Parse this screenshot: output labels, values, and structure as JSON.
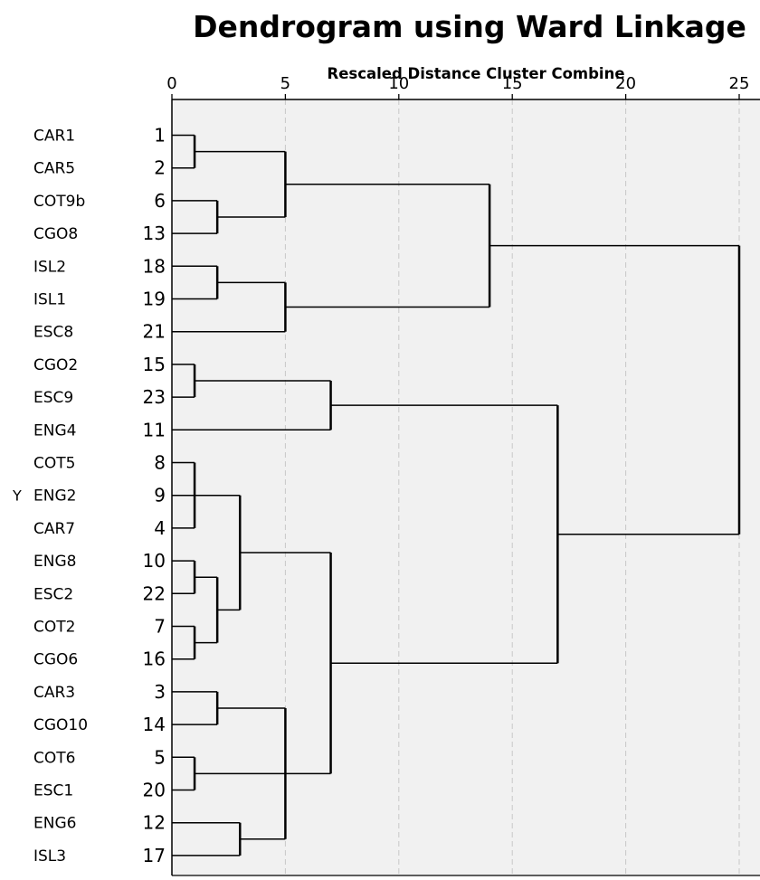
{
  "chart_data": {
    "type": "dendrogram",
    "title": "Dendrogram using Ward Linkage",
    "xlabel": "Rescaled Distance Cluster Combine",
    "ylabel": "Y",
    "xlim": [
      0,
      25
    ],
    "xticks": [
      0,
      5,
      10,
      15,
      20,
      25
    ],
    "grid": true,
    "leaves": [
      {
        "label": "CAR1",
        "case": "1"
      },
      {
        "label": "CAR5",
        "case": "2"
      },
      {
        "label": "COT9b",
        "case": "6"
      },
      {
        "label": "CGO8",
        "case": "13"
      },
      {
        "label": "ISL2",
        "case": "18"
      },
      {
        "label": "ISL1",
        "case": "19"
      },
      {
        "label": "ESC8",
        "case": "21"
      },
      {
        "label": "CGO2",
        "case": "15"
      },
      {
        "label": "ESC9",
        "case": "23"
      },
      {
        "label": "ENG4",
        "case": "11"
      },
      {
        "label": "COT5",
        "case": "8"
      },
      {
        "label": "ENG2",
        "case": "9"
      },
      {
        "label": "CAR7",
        "case": "4"
      },
      {
        "label": "ENG8",
        "case": "10"
      },
      {
        "label": "ESC2",
        "case": "22"
      },
      {
        "label": "COT2",
        "case": "7"
      },
      {
        "label": "CGO6",
        "case": "16"
      },
      {
        "label": "CAR3",
        "case": "3"
      },
      {
        "label": "CGO10",
        "case": "14"
      },
      {
        "label": "COT6",
        "case": "5"
      },
      {
        "label": "ESC1",
        "case": "20"
      },
      {
        "label": "ENG6",
        "case": "12"
      },
      {
        "label": "ISL3",
        "case": "17"
      }
    ],
    "merges": [
      {
        "id": "m1",
        "children": [
          "L0",
          "L1"
        ],
        "height": 1
      },
      {
        "id": "m2",
        "children": [
          "L2",
          "L3"
        ],
        "height": 2
      },
      {
        "id": "m3",
        "children": [
          "m1",
          "m2"
        ],
        "height": 5
      },
      {
        "id": "m4",
        "children": [
          "L4",
          "L5"
        ],
        "height": 2
      },
      {
        "id": "m5",
        "children": [
          "m4",
          "L6"
        ],
        "height": 5
      },
      {
        "id": "m6",
        "children": [
          "m3",
          "m5"
        ],
        "height": 14
      },
      {
        "id": "m7",
        "children": [
          "L7",
          "L8"
        ],
        "height": 1
      },
      {
        "id": "m8",
        "children": [
          "m7",
          "L9"
        ],
        "height": 7
      },
      {
        "id": "m9",
        "children": [
          "L10",
          "L11",
          "L12"
        ],
        "height": 1
      },
      {
        "id": "m10",
        "children": [
          "L13",
          "L14"
        ],
        "height": 1
      },
      {
        "id": "m11",
        "children": [
          "L15",
          "L16"
        ],
        "height": 1
      },
      {
        "id": "m12",
        "children": [
          "m10",
          "m11"
        ],
        "height": 2
      },
      {
        "id": "m13",
        "children": [
          "m9",
          "m12"
        ],
        "height": 3
      },
      {
        "id": "m14",
        "children": [
          "L17",
          "L18"
        ],
        "height": 2
      },
      {
        "id": "m15",
        "children": [
          "L19",
          "L20"
        ],
        "height": 1
      },
      {
        "id": "m16",
        "children": [
          "L21",
          "L22"
        ],
        "height": 3
      },
      {
        "id": "m17",
        "children": [
          "m14",
          "m15",
          "m16"
        ],
        "height": 5
      },
      {
        "id": "m18",
        "children": [
          "m13",
          "m17"
        ],
        "height": 7
      },
      {
        "id": "m19",
        "children": [
          "m8",
          "m18"
        ],
        "height": 17
      },
      {
        "id": "m20",
        "children": [
          "m6",
          "m19"
        ],
        "height": 25
      }
    ]
  }
}
